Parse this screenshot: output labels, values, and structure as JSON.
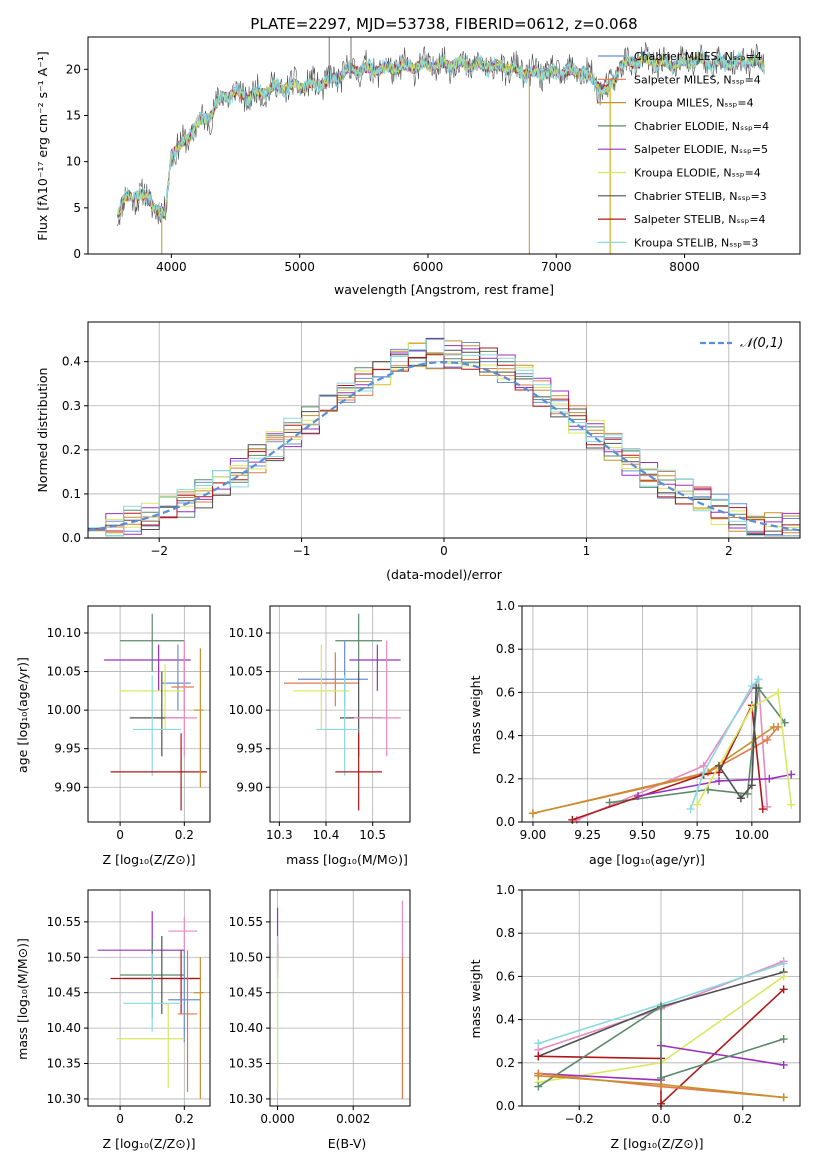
{
  "colors": {
    "chabrier_miles": "#6b8fd6",
    "salpeter_miles": "#e07a4a",
    "kroupa_miles": "#c8902a",
    "chabrier_elodie": "#5a8a6a",
    "salpeter_elodie": "#9b30c0",
    "kroupa_elodie": "#d8e860",
    "chabrier_stelib": "#505050",
    "salpeter_stelib": "#b01818",
    "kroupa_stelib": "#8ad8e0",
    "pink": "#e88ac0",
    "normal": "#5590d8",
    "grid": "#b0b0b0"
  },
  "chart_data": [
    {
      "id": "spectrum",
      "type": "line",
      "title": "PLATE=2297, MJD=53738, FIBERID=0612, z=0.068",
      "xlabel": "wavelength [Angstrom, rest frame]",
      "ylabel": "Flux [fλ10⁻¹⁷ erg cm⁻² s⁻¹ A⁻¹]",
      "xlim": [
        3350,
        8900
      ],
      "ylim": [
        0,
        23.5
      ],
      "xticks": [
        4000,
        5000,
        6000,
        7000,
        8000
      ],
      "yticks": [
        0,
        5,
        10,
        15,
        20
      ],
      "grid": false,
      "legend_position": "right",
      "anchors": [
        [
          3580,
          4.5
        ],
        [
          3650,
          6
        ],
        [
          3750,
          6.5
        ],
        [
          3850,
          5.5
        ],
        [
          3950,
          4
        ],
        [
          4000,
          11
        ],
        [
          4100,
          12
        ],
        [
          4200,
          14
        ],
        [
          4300,
          15
        ],
        [
          4400,
          17
        ],
        [
          4500,
          17.5
        ],
        [
          4600,
          17
        ],
        [
          4800,
          18
        ],
        [
          5000,
          18.2
        ],
        [
          5200,
          18.5
        ],
        [
          5400,
          20
        ],
        [
          5600,
          20
        ],
        [
          5800,
          20.2
        ],
        [
          6000,
          20.5
        ],
        [
          6200,
          20.6
        ],
        [
          6400,
          20.4
        ],
        [
          6600,
          20.2
        ],
        [
          6800,
          19.6
        ],
        [
          7000,
          19.6
        ],
        [
          7200,
          19.8
        ],
        [
          7400,
          17.5
        ],
        [
          7500,
          20.5
        ],
        [
          7700,
          21
        ],
        [
          7900,
          20.5
        ],
        [
          8100,
          21
        ],
        [
          8300,
          20.6
        ],
        [
          8500,
          21
        ],
        [
          8600,
          20.5
        ]
      ],
      "legend": [
        "Chabrier MILES, Nₛₛₚ=4",
        "Salpeter MILES, Nₛₛₚ=4",
        "Kroupa MILES, Nₛₛₚ=4",
        "Chabrier ELODIE, Nₛₛₚ=4",
        "Salpeter ELODIE, Nₛₛₚ=5",
        "Kroupa ELODIE, Nₛₛₚ=4",
        "Chabrier STELIB, Nₛₛₚ=3",
        "Salpeter STELIB, Nₛₛₚ=4",
        "Kroupa STELIB, Nₛₛₚ=3"
      ]
    },
    {
      "id": "residuals",
      "type": "histogram",
      "xlabel": "(data-model)/error",
      "ylabel": "Normed distribution",
      "xlim": [
        -2.5,
        2.5
      ],
      "ylim": [
        0,
        0.49
      ],
      "xticks": [
        -2,
        -1,
        0,
        1,
        2
      ],
      "yticks": [
        0.0,
        0.1,
        0.2,
        0.3,
        0.4
      ],
      "grid": true,
      "legend": [
        "𝒩(0,1)"
      ],
      "legend_position": "top-right",
      "bins": 40
    },
    {
      "id": "age_vs_Z",
      "type": "errorbar",
      "xlabel": "Z [log₁₀(Z/Z⊙)]",
      "ylabel": "age  [log₁₀(age/yr)]",
      "xlim": [
        -0.1,
        0.28
      ],
      "ylim": [
        9.855,
        10.135
      ],
      "xticks": [
        0.0,
        0.2
      ],
      "yticks": [
        9.9,
        9.95,
        10.0,
        10.05,
        10.1
      ],
      "points": [
        {
          "x": 0.1,
          "y": 10.09,
          "xerr": [
            0.1,
            0.1
          ],
          "yerr": [
            0.04,
            0.035
          ],
          "color": "#5a8a6a"
        },
        {
          "x": 0.12,
          "y": 10.065,
          "xerr": [
            0.17,
            0.1
          ],
          "yerr": [
            0.04,
            0.02
          ],
          "color": "#9b30c0"
        },
        {
          "x": 0.18,
          "y": 10.035,
          "xerr": [
            0.05,
            0.04
          ],
          "yerr": [
            0.035,
            0.05
          ],
          "color": "#6b8fd6"
        },
        {
          "x": 0.2,
          "y": 10.03,
          "xerr": [
            0.04,
            0.03
          ],
          "yerr": [
            0.03,
            0.04
          ],
          "color": "#e07a4a"
        },
        {
          "x": 0.14,
          "y": 10.025,
          "xerr": [
            0.14,
            0.06
          ],
          "yerr": [
            0.05,
            0.035
          ],
          "color": "#d8e860"
        },
        {
          "x": 0.13,
          "y": 9.99,
          "xerr": [
            0.1,
            0.07
          ],
          "yerr": [
            0.05,
            0.06
          ],
          "color": "#505050"
        },
        {
          "x": 0.2,
          "y": 9.99,
          "xerr": [
            0.06,
            0.04
          ],
          "yerr": [
            0.05,
            0.1
          ],
          "color": "#e88ac0"
        },
        {
          "x": 0.1,
          "y": 9.975,
          "xerr": [
            0.06,
            0.09
          ],
          "yerr": [
            0.06,
            0.07
          ],
          "color": "#8ad8e0"
        },
        {
          "x": 0.19,
          "y": 9.92,
          "xerr": [
            0.22,
            0.08
          ],
          "yerr": [
            0.05,
            0.05
          ],
          "color": "#b01818"
        },
        {
          "x": 0.25,
          "y": 10.0,
          "xerr": [
            0.02,
            0.01
          ],
          "yerr": [
            0.1,
            0.08
          ],
          "color": "#c8902a"
        }
      ]
    },
    {
      "id": "age_vs_mass",
      "type": "errorbar",
      "xlabel": "mass [log₁₀(M/M⊙)]",
      "ylabel": "",
      "xlim": [
        10.28,
        10.58
      ],
      "ylim": [
        9.855,
        10.135
      ],
      "xticks": [
        10.3,
        10.4,
        10.5
      ],
      "yticks": [
        9.9,
        9.95,
        10.0,
        10.05,
        10.1
      ],
      "points": [
        {
          "x": 10.47,
          "y": 10.09,
          "xerr": [
            0.05,
            0.05
          ],
          "yerr": [
            0.04,
            0.035
          ],
          "color": "#5a8a6a"
        },
        {
          "x": 10.51,
          "y": 10.065,
          "xerr": [
            0.06,
            0.05
          ],
          "yerr": [
            0.04,
            0.02
          ],
          "color": "#9b30c0"
        },
        {
          "x": 10.44,
          "y": 10.04,
          "xerr": [
            0.1,
            0.05
          ],
          "yerr": [
            0.035,
            0.05
          ],
          "color": "#6b8fd6"
        },
        {
          "x": 10.42,
          "y": 10.035,
          "xerr": [
            0.11,
            0.05
          ],
          "yerr": [
            0.03,
            0.04
          ],
          "color": "#e07a4a"
        },
        {
          "x": 10.39,
          "y": 10.025,
          "xerr": [
            0.06,
            0.06
          ],
          "yerr": [
            0.05,
            0.06
          ],
          "color": "#d8e860"
        },
        {
          "x": 10.47,
          "y": 9.99,
          "xerr": [
            0.04,
            0.05
          ],
          "yerr": [
            0.05,
            0.06
          ],
          "color": "#505050"
        },
        {
          "x": 10.53,
          "y": 9.99,
          "xerr": [
            0.07,
            0.03
          ],
          "yerr": [
            0.05,
            0.1
          ],
          "color": "#e88ac0"
        },
        {
          "x": 10.44,
          "y": 9.975,
          "xerr": [
            0.06,
            0.03
          ],
          "yerr": [
            0.06,
            0.07
          ],
          "color": "#8ad8e0"
        },
        {
          "x": 10.47,
          "y": 9.92,
          "xerr": [
            0.05,
            0.05
          ],
          "yerr": [
            0.05,
            0.05
          ],
          "color": "#b01818"
        }
      ]
    },
    {
      "id": "weight_vs_age",
      "type": "line",
      "xlabel": "age  [log₁₀(age/yr)]",
      "ylabel": "mass weight",
      "xlim": [
        8.95,
        10.22
      ],
      "ylim": [
        0,
        1.0
      ],
      "xticks": [
        9.0,
        9.25,
        9.5,
        9.75,
        10.0
      ],
      "xtick_labels": [
        "9.00",
        "9.25",
        "9.50",
        "9.75",
        "10.00"
      ],
      "yticks": [
        0.0,
        0.2,
        0.4,
        0.6,
        0.8,
        1.0
      ],
      "grid": true,
      "series": [
        {
          "color": "#e88ac0",
          "x": [
            9.2,
            9.78,
            10.03,
            10.07
          ],
          "y": [
            0.01,
            0.26,
            0.66,
            0.07
          ]
        },
        {
          "color": "#5a8a6a",
          "x": [
            9.35,
            9.8,
            9.98,
            10.03,
            10.15
          ],
          "y": [
            0.09,
            0.15,
            0.13,
            0.62,
            0.46
          ]
        },
        {
          "color": "#e07a4a",
          "x": [
            9.0,
            9.8,
            10.07,
            10.12
          ],
          "y": [
            0.04,
            0.23,
            0.38,
            0.44
          ]
        },
        {
          "color": "#c8902a",
          "x": [
            9.0,
            9.78,
            10.1
          ],
          "y": [
            0.04,
            0.22,
            0.44
          ]
        },
        {
          "color": "#b01818",
          "x": [
            9.18,
            9.78,
            9.85,
            10.0,
            10.05
          ],
          "y": [
            0.01,
            0.22,
            0.23,
            0.54,
            0.06
          ]
        },
        {
          "color": "#9b30c0",
          "x": [
            9.48,
            9.85,
            10.08,
            10.18
          ],
          "y": [
            0.12,
            0.19,
            0.2,
            0.22
          ]
        },
        {
          "color": "#d8e860",
          "x": [
            9.75,
            10.0,
            10.12,
            10.18
          ],
          "y": [
            0.08,
            0.53,
            0.6,
            0.08
          ]
        },
        {
          "color": "#8ad8e0",
          "x": [
            9.72,
            9.78,
            10.0,
            10.03
          ],
          "y": [
            0.06,
            0.23,
            0.63,
            0.66
          ]
        },
        {
          "color": "#505050",
          "x": [
            9.85,
            9.95,
            10.0,
            10.02
          ],
          "y": [
            0.26,
            0.11,
            0.17,
            0.62
          ]
        }
      ]
    },
    {
      "id": "mass_vs_Z",
      "type": "errorbar",
      "xlabel": "Z [log₁₀(Z/Z⊙)]",
      "ylabel": "mass [log₁₀(M/M⊙)]",
      "xlim": [
        -0.1,
        0.28
      ],
      "ylim": [
        10.29,
        10.595
      ],
      "xticks": [
        0.0,
        0.2
      ],
      "yticks": [
        10.3,
        10.35,
        10.4,
        10.45,
        10.5,
        10.55
      ],
      "points": [
        {
          "x": 0.2,
          "y": 10.537,
          "xerr": [
            0.05,
            0.04
          ],
          "yerr": [
            0.03,
            0.02
          ],
          "color": "#e88ac0"
        },
        {
          "x": 0.1,
          "y": 10.51,
          "xerr": [
            0.17,
            0.1
          ],
          "yerr": [
            0.07,
            0.055
          ],
          "color": "#9b30c0"
        },
        {
          "x": 0.1,
          "y": 10.475,
          "xerr": [
            0.1,
            0.1
          ],
          "yerr": [
            0.06,
            0.05
          ],
          "color": "#5a8a6a"
        },
        {
          "x": 0.13,
          "y": 10.47,
          "xerr": [
            0.12,
            0.12
          ],
          "yerr": [
            0.05,
            0.06
          ],
          "color": "#505050"
        },
        {
          "x": 0.19,
          "y": 10.47,
          "xerr": [
            0.22,
            0.06
          ],
          "yerr": [
            0.05,
            0.04
          ],
          "color": "#b01818"
        },
        {
          "x": 0.2,
          "y": 10.44,
          "xerr": [
            0.05,
            0.05
          ],
          "yerr": [
            0.06,
            0.07
          ],
          "color": "#6b8fd6"
        },
        {
          "x": 0.1,
          "y": 10.435,
          "xerr": [
            0.09,
            0.09
          ],
          "yerr": [
            0.04,
            0.07
          ],
          "color": "#8ad8e0"
        },
        {
          "x": 0.21,
          "y": 10.42,
          "xerr": [
            0.03,
            0.03
          ],
          "yerr": [
            0.11,
            0.09
          ],
          "color": "#e07a4a"
        },
        {
          "x": 0.15,
          "y": 10.385,
          "xerr": [
            0.16,
            0.05
          ],
          "yerr": [
            0.07,
            0.05
          ],
          "color": "#d8e860"
        },
        {
          "x": 0.25,
          "y": 10.45,
          "xerr": [
            0.02,
            0.01
          ],
          "yerr": [
            0.15,
            0.05
          ],
          "color": "#c8902a"
        }
      ]
    },
    {
      "id": "mass_vs_EBV",
      "type": "errorbar",
      "xlabel": "E(B-V)",
      "ylabel": "",
      "xlim": [
        -0.0002,
        0.0035
      ],
      "ylim": [
        10.29,
        10.595
      ],
      "xticks": [
        0.0,
        0.002
      ],
      "xtick_labels": [
        "0.000",
        "0.002"
      ],
      "yticks": [
        10.3,
        10.35,
        10.4,
        10.45,
        10.5,
        10.55
      ],
      "points": [
        {
          "x": 0.0,
          "y": 10.52,
          "xerr": [
            0,
            0
          ],
          "yerr": [
            0.05,
            0.05
          ],
          "color": "#9b30c0"
        },
        {
          "x": 0.0,
          "y": 10.5,
          "xerr": [
            0,
            0
          ],
          "yerr": [
            0.02,
            0.02
          ],
          "color": "#b01818"
        },
        {
          "x": 0.0,
          "y": 10.45,
          "xerr": [
            0,
            0
          ],
          "yerr": [
            0.11,
            0.08
          ],
          "color": "#8ad8e0"
        },
        {
          "x": 0.0,
          "y": 10.4,
          "xerr": [
            0,
            0
          ],
          "yerr": [
            0.09,
            0.1
          ],
          "color": "#d8e860"
        },
        {
          "x": 0.0033,
          "y": 10.5,
          "xerr": [
            0,
            0
          ],
          "yerr": [
            0.05,
            0.08
          ],
          "color": "#e88ac0"
        },
        {
          "x": 0.0033,
          "y": 10.42,
          "xerr": [
            0,
            0
          ],
          "yerr": [
            0.12,
            0.08
          ],
          "color": "#e07a4a"
        }
      ]
    },
    {
      "id": "weight_vs_Z",
      "type": "line",
      "xlabel": "Z [log₁₀(Z/Z⊙)]",
      "ylabel": "mass weight",
      "xlim": [
        -0.34,
        0.34
      ],
      "ylim": [
        0,
        1.0
      ],
      "xticks": [
        -0.2,
        0.0,
        0.2
      ],
      "xtick_labels": [
        "−0.2",
        "0.0",
        "0.2"
      ],
      "yticks": [
        0.0,
        0.2,
        0.4,
        0.6,
        0.8,
        1.0
      ],
      "grid": true,
      "series": [
        {
          "color": "#e88ac0",
          "x": [
            -0.3,
            0.0,
            0.3
          ],
          "y": [
            0.26,
            0.45,
            0.67
          ]
        },
        {
          "color": "#8ad8e0",
          "x": [
            -0.3,
            0.0,
            0.3
          ],
          "y": [
            0.29,
            0.47,
            0.66
          ]
        },
        {
          "color": "#505050",
          "x": [
            -0.3,
            0.0,
            0.3
          ],
          "y": [
            0.23,
            0.46,
            0.62
          ]
        },
        {
          "color": "#d8e860",
          "x": [
            -0.3,
            0.0,
            0.3
          ],
          "y": [
            0.11,
            0.2,
            0.6
          ]
        },
        {
          "color": "#b01818",
          "x": [
            -0.3,
            0.0,
            0.0,
            0.3
          ],
          "y": [
            0.23,
            0.22,
            0.01,
            0.54
          ]
        },
        {
          "color": "#9b30c0",
          "x": [
            -0.3,
            0.0,
            0.0,
            0.3
          ],
          "y": [
            0.15,
            0.12,
            0.28,
            0.19
          ]
        },
        {
          "color": "#5a8a6a",
          "x": [
            -0.3,
            0.0,
            0.0,
            0.3
          ],
          "y": [
            0.09,
            0.46,
            0.13,
            0.31
          ]
        },
        {
          "color": "#e07a4a",
          "x": [
            -0.3,
            0.0,
            0.3
          ],
          "y": [
            0.15,
            0.09,
            0.04
          ]
        },
        {
          "color": "#c8902a",
          "x": [
            -0.3,
            0.0,
            0.3
          ],
          "y": [
            0.14,
            0.1,
            0.04
          ]
        }
      ]
    }
  ]
}
